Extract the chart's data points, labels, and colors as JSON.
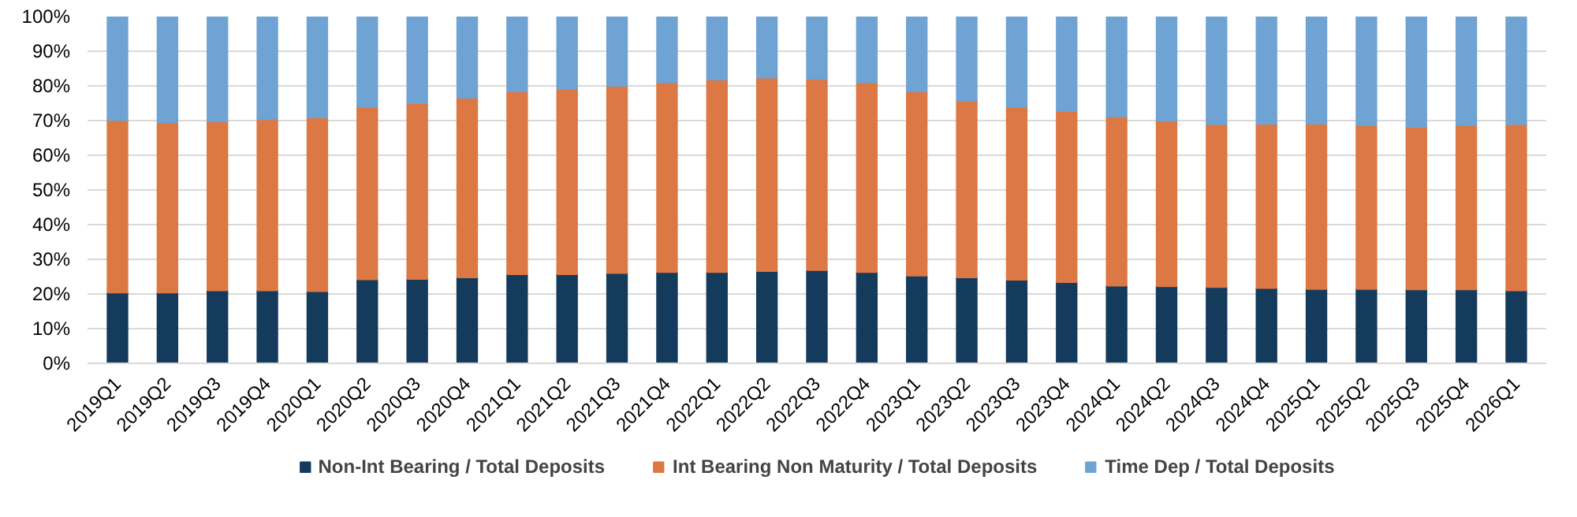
{
  "chart_data": {
    "type": "bar",
    "stacked": true,
    "categories": [
      "2019Q1",
      "2019Q2",
      "2019Q3",
      "2019Q4",
      "2020Q1",
      "2020Q2",
      "2020Q3",
      "2020Q4",
      "2021Q1",
      "2021Q2",
      "2021Q3",
      "2021Q4",
      "2022Q1",
      "2022Q2",
      "2022Q3",
      "2022Q4",
      "2023Q1",
      "2023Q2",
      "2023Q3",
      "2023Q4",
      "2024Q1",
      "2024Q2",
      "2024Q3",
      "2024Q4",
      "2025Q1",
      "2025Q2",
      "2025Q3",
      "2025Q4",
      "2026Q1"
    ],
    "series": [
      {
        "name": "Non-Int Bearing / Total Deposits",
        "color": "#143a5c",
        "values": [
          20.4,
          20.4,
          21,
          21,
          20.8,
          24.2,
          24.3,
          24.8,
          25.7,
          25.7,
          26,
          26.3,
          26.3,
          26.6,
          26.9,
          26.3,
          25.3,
          24.8,
          24.1,
          23.4,
          22.4,
          22.2,
          22,
          21.7,
          21.4,
          21.4,
          21.3,
          21.3,
          21
        ]
      },
      {
        "name": "Int Bearing Non Maturity / Total Deposits",
        "color": "#dc7843",
        "values": [
          49.7,
          49.1,
          48.8,
          49.4,
          50.1,
          49.8,
          50.7,
          51.8,
          52.7,
          53.4,
          54,
          54.7,
          55.5,
          55.8,
          55.1,
          54.7,
          53.1,
          51,
          49.9,
          49.4,
          48.8,
          47.8,
          47,
          47.4,
          47.7,
          47.3,
          46.9,
          47.4,
          48
        ]
      },
      {
        "name": "Time Dep / Total Deposits",
        "color": "#6fa3d4",
        "values": [
          29.9,
          30.5,
          30.2,
          29.6,
          29.1,
          26,
          25,
          23.4,
          21.6,
          20.9,
          20,
          19,
          18.2,
          17.6,
          18,
          19,
          21.6,
          24.2,
          26,
          27.2,
          28.8,
          30,
          31,
          30.9,
          30.9,
          31.3,
          31.8,
          31.3,
          31
        ]
      }
    ],
    "ylim": [
      0,
      100
    ],
    "yticks": [
      {
        "value": 0,
        "label": "0%"
      },
      {
        "value": 10,
        "label": "10%"
      },
      {
        "value": 20,
        "label": "20%"
      },
      {
        "value": 30,
        "label": "30%"
      },
      {
        "value": 40,
        "label": "40%"
      },
      {
        "value": 50,
        "label": "50%"
      },
      {
        "value": 60,
        "label": "60%"
      },
      {
        "value": 70,
        "label": "70%"
      },
      {
        "value": 80,
        "label": "80%"
      },
      {
        "value": 90,
        "label": "90%"
      },
      {
        "value": 100,
        "label": "100%"
      }
    ],
    "grid": "y",
    "legend": "bottom"
  }
}
